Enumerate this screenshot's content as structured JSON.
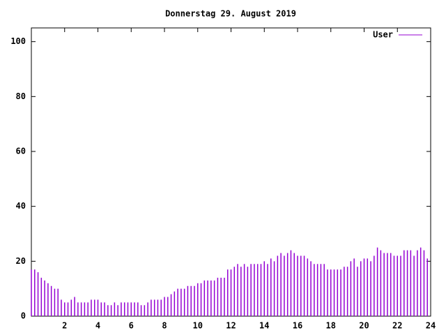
{
  "chart_data": {
    "type": "impulse",
    "title": "Donnerstag 29. August 2019",
    "series": [
      {
        "name": "User",
        "color": "#9400d3",
        "x": [
          0,
          0.2,
          0.4,
          0.6,
          0.8,
          1,
          1.2,
          1.4,
          1.6,
          1.8,
          2,
          2.2,
          2.4,
          2.6,
          2.8,
          3,
          3.2,
          3.4,
          3.6,
          3.8,
          4,
          4.2,
          4.4,
          4.6,
          4.8,
          5,
          5.2,
          5.4,
          5.6,
          5.8,
          6,
          6.2,
          6.4,
          6.6,
          6.8,
          7,
          7.2,
          7.4,
          7.6,
          7.8,
          8,
          8.2,
          8.4,
          8.6,
          8.8,
          9,
          9.2,
          9.4,
          9.6,
          9.8,
          10,
          10.2,
          10.4,
          10.6,
          10.8,
          11,
          11.2,
          11.4,
          11.6,
          11.8,
          12,
          12.2,
          12.4,
          12.6,
          12.8,
          13,
          13.2,
          13.4,
          13.6,
          13.8,
          14,
          14.2,
          14.4,
          14.6,
          14.8,
          15,
          15.2,
          15.4,
          15.6,
          15.8,
          16,
          16.2,
          16.4,
          16.6,
          16.8,
          17,
          17.2,
          17.4,
          17.6,
          17.8,
          18,
          18.2,
          18.4,
          18.6,
          18.8,
          19,
          19.2,
          19.4,
          19.6,
          19.8,
          20,
          20.2,
          20.4,
          20.6,
          20.8,
          21,
          21.2,
          21.4,
          21.6,
          21.8,
          22,
          22.2,
          22.4,
          22.6,
          22.8,
          23,
          23.2,
          23.4,
          23.6,
          23.8
        ],
        "values": [
          17,
          17,
          16,
          14,
          13,
          12,
          11,
          10,
          10,
          6,
          5,
          5,
          6,
          7,
          5,
          5,
          5,
          5,
          6,
          6,
          6,
          5,
          5,
          4,
          4,
          5,
          4,
          5,
          5,
          5,
          5,
          5,
          5,
          4,
          4,
          5,
          6,
          6,
          6,
          6,
          7,
          7,
          8,
          9,
          10,
          10,
          10,
          11,
          11,
          11,
          12,
          12,
          13,
          13,
          13,
          13,
          14,
          14,
          14,
          17,
          17,
          18,
          19,
          18,
          19,
          18,
          19,
          19,
          19,
          19,
          20,
          19,
          21,
          20,
          22,
          23,
          22,
          23,
          24,
          23,
          22,
          22,
          22,
          21,
          20,
          19,
          19,
          19,
          19,
          17,
          17,
          17,
          17,
          17,
          18,
          18,
          20,
          21,
          18,
          20,
          21,
          21,
          20,
          22,
          25,
          24,
          23,
          23,
          23,
          22,
          22,
          22,
          24,
          24,
          24,
          22,
          24,
          25,
          24,
          21
        ]
      }
    ],
    "xlim": [
      0,
      24
    ],
    "xticks": [
      2,
      4,
      6,
      8,
      10,
      12,
      14,
      16,
      18,
      20,
      22,
      24
    ],
    "ylim": [
      0,
      105
    ],
    "yticks": [
      0,
      20,
      40,
      60,
      80,
      100
    ]
  }
}
